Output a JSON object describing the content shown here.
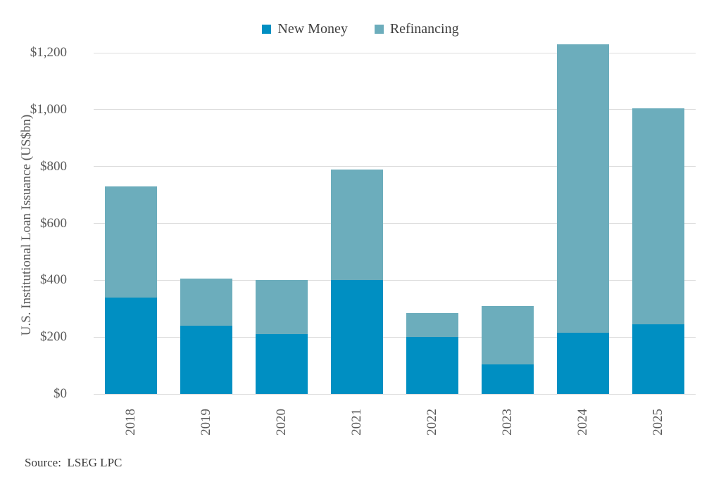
{
  "chart_data": {
    "type": "bar",
    "stacked": true,
    "title": "",
    "xlabel": "",
    "ylabel": "U.S. Institutional Loan Issuance (US$bn)",
    "categories": [
      "2018",
      "2019",
      "2020",
      "2021",
      "2022",
      "2023",
      "2024",
      "2025"
    ],
    "series": [
      {
        "name": "New Money",
        "color": "#008fc2",
        "values": [
          340,
          240,
          210,
          400,
          200,
          105,
          215,
          245
        ]
      },
      {
        "name": "Refinancing",
        "color": "#6cadbc",
        "values": [
          390,
          165,
          190,
          390,
          85,
          205,
          1015,
          760
        ]
      }
    ],
    "totals": [
      730,
      405,
      400,
      790,
      285,
      310,
      1230,
      1005
    ],
    "ylim": [
      0,
      1200
    ],
    "ytick_step": 200,
    "ytick_labels": [
      "$0",
      "$200",
      "$400",
      "$600",
      "$800",
      "$1,000",
      "$1,200"
    ],
    "grid": true,
    "legend_position": "top-center"
  },
  "source_label": "Source:  LSEG LPC",
  "colors": {
    "gridline": "#dcdcdc",
    "axis_text": "#595959",
    "legend_text": "#3f3f3f",
    "background": "#ffffff"
  }
}
